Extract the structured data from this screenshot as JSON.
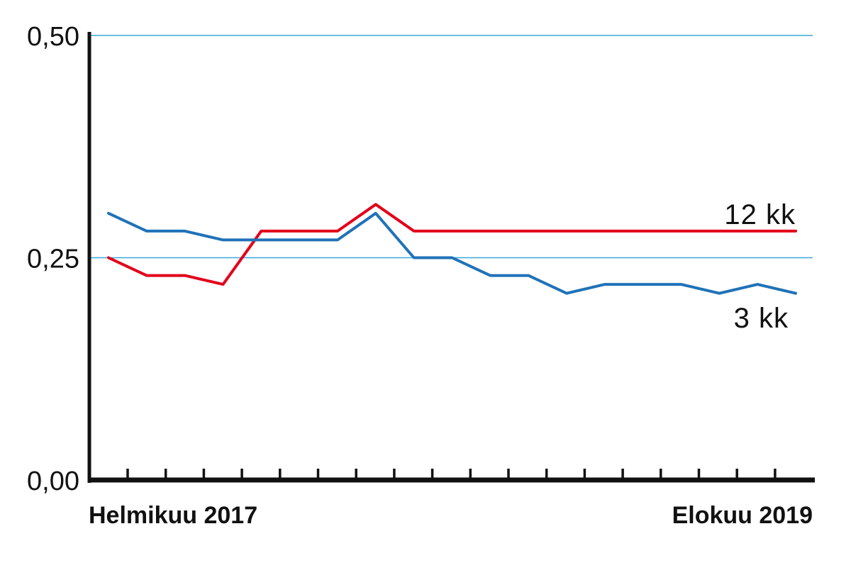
{
  "chart_data": {
    "type": "line",
    "x_start_label": "Helmikuu 2017",
    "x_end_label": "Elokuu 2019",
    "ylim": [
      0,
      0.5
    ],
    "y_ticks": [
      {
        "value": 0.0,
        "label": "0,00"
      },
      {
        "value": 0.25,
        "label": "0,25"
      },
      {
        "value": 0.5,
        "label": "0,50"
      }
    ],
    "grid": "horizontal",
    "series": [
      {
        "name": "12 kk",
        "color": "#e2001a",
        "values": [
          0.25,
          0.23,
          0.23,
          0.22,
          0.28,
          0.28,
          0.28,
          0.31,
          0.28,
          0.28,
          0.28,
          0.28,
          0.28,
          0.28,
          0.28,
          0.28,
          0.28,
          0.28,
          0.28
        ]
      },
      {
        "name": "3 kk",
        "color": "#1f72b8",
        "values": [
          0.3,
          0.28,
          0.28,
          0.27,
          0.27,
          0.27,
          0.27,
          0.3,
          0.25,
          0.25,
          0.23,
          0.23,
          0.21,
          0.22,
          0.22,
          0.22,
          0.21,
          0.22,
          0.21
        ]
      }
    ],
    "colors": {
      "axis": "#111111",
      "gridline": "#3aa8dc"
    }
  }
}
